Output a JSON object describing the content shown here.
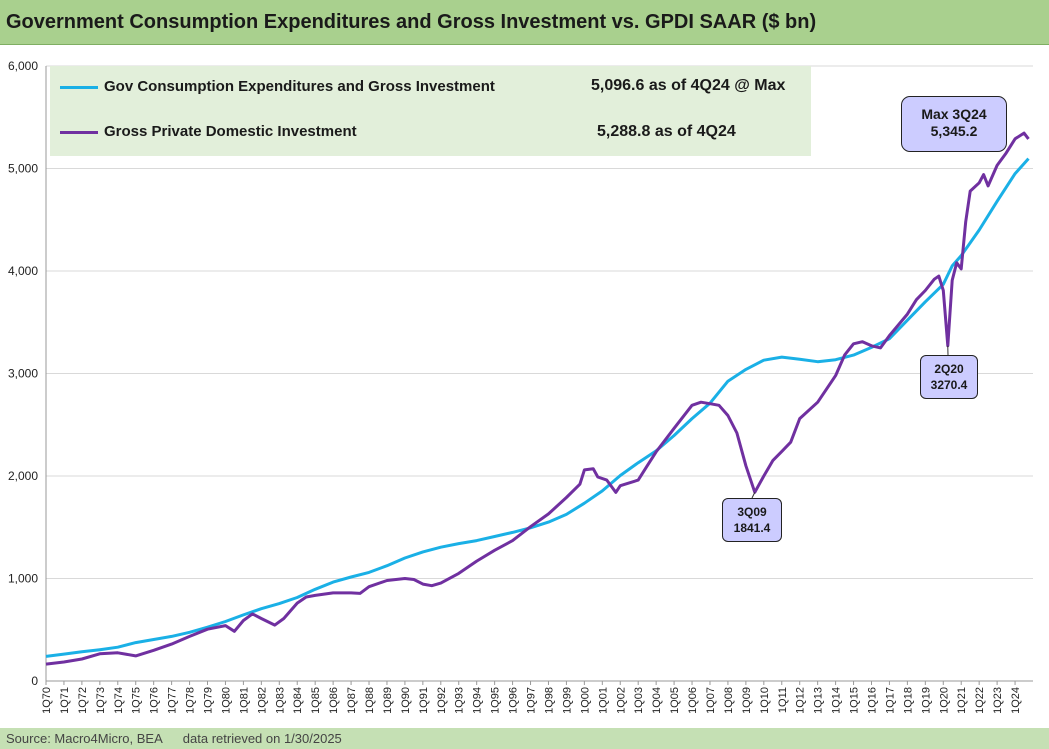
{
  "title": "Government Consumption Expenditures and Gross Investment vs. GPDI SAAR ($ bn)",
  "source": "Source: Macro4Micro, BEA",
  "retrieved": "data retrieved on 1/30/2025",
  "legend": {
    "gov": {
      "label": "Gov Consumption Expenditures and Gross Investment",
      "value": "5,096.6 as of 4Q24 @ Max"
    },
    "gpdi": {
      "label": "Gross Private Domestic Investment",
      "value": "5,288.8 as of 4Q24"
    }
  },
  "callouts": {
    "max": {
      "line1": "Max 3Q24",
      "line2": "5,345.2"
    },
    "q09": {
      "line1": "3Q09",
      "line2": "1841.4"
    },
    "q20": {
      "line1": "2Q20",
      "line2": "3270.4"
    }
  },
  "colors": {
    "gov": "#1ab0e6",
    "gpdi": "#7030a0",
    "callout_fill": "#ccccff"
  },
  "chart_data": {
    "type": "line",
    "title": "Government Consumption Expenditures and Gross Investment vs. GPDI SAAR ($ bn)",
    "xlabel": "",
    "ylabel": "",
    "ylim": [
      0,
      6000
    ],
    "yticks": [
      0,
      1000,
      2000,
      3000,
      4000,
      5000,
      6000
    ],
    "ytick_labels": [
      "0",
      "1,000",
      "2,000",
      "3,000",
      "4,000",
      "5,000",
      "6,000"
    ],
    "xtick_labels": [
      "1Q70",
      "1Q71",
      "1Q72",
      "1Q73",
      "1Q74",
      "1Q75",
      "1Q76",
      "1Q77",
      "1Q78",
      "1Q79",
      "1Q80",
      "1Q81",
      "1Q82",
      "1Q83",
      "1Q84",
      "1Q85",
      "1Q86",
      "1Q87",
      "1Q88",
      "1Q89",
      "1Q90",
      "1Q91",
      "1Q92",
      "1Q93",
      "1Q94",
      "1Q95",
      "1Q96",
      "1Q97",
      "1Q98",
      "1Q99",
      "1Q00",
      "1Q01",
      "1Q02",
      "1Q03",
      "1Q04",
      "1Q05",
      "1Q06",
      "1Q07",
      "1Q08",
      "1Q09",
      "1Q10",
      "1Q11",
      "1Q12",
      "1Q13",
      "1Q14",
      "1Q15",
      "1Q16",
      "1Q17",
      "1Q18",
      "1Q19",
      "1Q20",
      "1Q21",
      "1Q22",
      "1Q23",
      "1Q24"
    ],
    "x_range": [
      "1Q70",
      "4Q24"
    ],
    "grid": "horizontal",
    "legend_position": "top-left",
    "series": [
      {
        "name": "Gov Consumption Expenditures and Gross Investment",
        "color": "#1ab0e6",
        "points": [
          [
            1970.0,
            240
          ],
          [
            1971.0,
            262
          ],
          [
            1972.0,
            285
          ],
          [
            1973.0,
            305
          ],
          [
            1974.0,
            330
          ],
          [
            1975.0,
            375
          ],
          [
            1976.0,
            405
          ],
          [
            1977.0,
            435
          ],
          [
            1978.0,
            475
          ],
          [
            1979.0,
            525
          ],
          [
            1980.0,
            580
          ],
          [
            1981.0,
            645
          ],
          [
            1982.0,
            705
          ],
          [
            1983.0,
            755
          ],
          [
            1984.0,
            815
          ],
          [
            1985.0,
            895
          ],
          [
            1986.0,
            965
          ],
          [
            1987.0,
            1015
          ],
          [
            1988.0,
            1060
          ],
          [
            1989.0,
            1125
          ],
          [
            1990.0,
            1200
          ],
          [
            1991.0,
            1260
          ],
          [
            1992.0,
            1305
          ],
          [
            1993.0,
            1340
          ],
          [
            1994.0,
            1370
          ],
          [
            1995.0,
            1410
          ],
          [
            1996.0,
            1450
          ],
          [
            1997.0,
            1495
          ],
          [
            1998.0,
            1550
          ],
          [
            1999.0,
            1625
          ],
          [
            2000.0,
            1735
          ],
          [
            2001.0,
            1855
          ],
          [
            2002.0,
            2005
          ],
          [
            2003.0,
            2130
          ],
          [
            2004.0,
            2245
          ],
          [
            2005.0,
            2395
          ],
          [
            2006.0,
            2560
          ],
          [
            2007.0,
            2710
          ],
          [
            2008.0,
            2925
          ],
          [
            2009.0,
            3040
          ],
          [
            2010.0,
            3130
          ],
          [
            2011.0,
            3160
          ],
          [
            2012.0,
            3140
          ],
          [
            2013.0,
            3115
          ],
          [
            2014.0,
            3135
          ],
          [
            2015.0,
            3180
          ],
          [
            2016.0,
            3255
          ],
          [
            2017.0,
            3340
          ],
          [
            2018.0,
            3520
          ],
          [
            2019.0,
            3700
          ],
          [
            2020.0,
            3870
          ],
          [
            2020.5,
            4050
          ],
          [
            2021.0,
            4150
          ],
          [
            2022.0,
            4400
          ],
          [
            2023.0,
            4680
          ],
          [
            2024.0,
            4950
          ],
          [
            2024.75,
            5096.6
          ]
        ]
      },
      {
        "name": "Gross Private Domestic Investment",
        "color": "#7030a0",
        "points": [
          [
            1970.0,
            165
          ],
          [
            1971.0,
            185
          ],
          [
            1972.0,
            215
          ],
          [
            1973.0,
            265
          ],
          [
            1974.0,
            275
          ],
          [
            1975.0,
            245
          ],
          [
            1976.0,
            300
          ],
          [
            1977.0,
            360
          ],
          [
            1978.0,
            435
          ],
          [
            1979.0,
            505
          ],
          [
            1980.0,
            540
          ],
          [
            1980.5,
            485
          ],
          [
            1981.0,
            590
          ],
          [
            1981.5,
            655
          ],
          [
            1982.0,
            610
          ],
          [
            1982.75,
            545
          ],
          [
            1983.25,
            610
          ],
          [
            1984.0,
            760
          ],
          [
            1984.5,
            820
          ],
          [
            1985.0,
            835
          ],
          [
            1986.0,
            860
          ],
          [
            1987.0,
            860
          ],
          [
            1987.5,
            855
          ],
          [
            1988.0,
            920
          ],
          [
            1989.0,
            980
          ],
          [
            1990.0,
            1000
          ],
          [
            1990.5,
            990
          ],
          [
            1991.0,
            945
          ],
          [
            1991.5,
            930
          ],
          [
            1992.0,
            955
          ],
          [
            1993.0,
            1050
          ],
          [
            1994.0,
            1170
          ],
          [
            1995.0,
            1275
          ],
          [
            1996.0,
            1370
          ],
          [
            1997.0,
            1505
          ],
          [
            1998.0,
            1630
          ],
          [
            1999.0,
            1790
          ],
          [
            1999.75,
            1920
          ],
          [
            2000.0,
            2060
          ],
          [
            2000.5,
            2070
          ],
          [
            2000.75,
            1990
          ],
          [
            2001.25,
            1960
          ],
          [
            2001.75,
            1840
          ],
          [
            2002.0,
            1905
          ],
          [
            2003.0,
            1960
          ],
          [
            2003.5,
            2100
          ],
          [
            2004.0,
            2235
          ],
          [
            2005.0,
            2465
          ],
          [
            2006.0,
            2690
          ],
          [
            2006.5,
            2720
          ],
          [
            2007.0,
            2705
          ],
          [
            2007.5,
            2690
          ],
          [
            2008.0,
            2590
          ],
          [
            2008.5,
            2420
          ],
          [
            2009.0,
            2100
          ],
          [
            2009.5,
            1841.4
          ],
          [
            2010.0,
            2000
          ],
          [
            2010.5,
            2150
          ],
          [
            2011.0,
            2240
          ],
          [
            2011.5,
            2330
          ],
          [
            2012.0,
            2560
          ],
          [
            2013.0,
            2720
          ],
          [
            2014.0,
            2980
          ],
          [
            2014.5,
            3180
          ],
          [
            2015.0,
            3290
          ],
          [
            2015.5,
            3310
          ],
          [
            2016.0,
            3270
          ],
          [
            2016.5,
            3250
          ],
          [
            2017.0,
            3370
          ],
          [
            2018.0,
            3580
          ],
          [
            2018.5,
            3720
          ],
          [
            2019.0,
            3810
          ],
          [
            2019.5,
            3920
          ],
          [
            2019.75,
            3950
          ],
          [
            2020.0,
            3810
          ],
          [
            2020.25,
            3270.4
          ],
          [
            2020.5,
            3910
          ],
          [
            2020.75,
            4080
          ],
          [
            2021.0,
            4020
          ],
          [
            2021.25,
            4480
          ],
          [
            2021.5,
            4780
          ],
          [
            2022.0,
            4860
          ],
          [
            2022.25,
            4940
          ],
          [
            2022.5,
            4830
          ],
          [
            2023.0,
            5030
          ],
          [
            2023.5,
            5150
          ],
          [
            2024.0,
            5290
          ],
          [
            2024.5,
            5345.2
          ],
          [
            2024.75,
            5288.8
          ]
        ]
      }
    ]
  }
}
